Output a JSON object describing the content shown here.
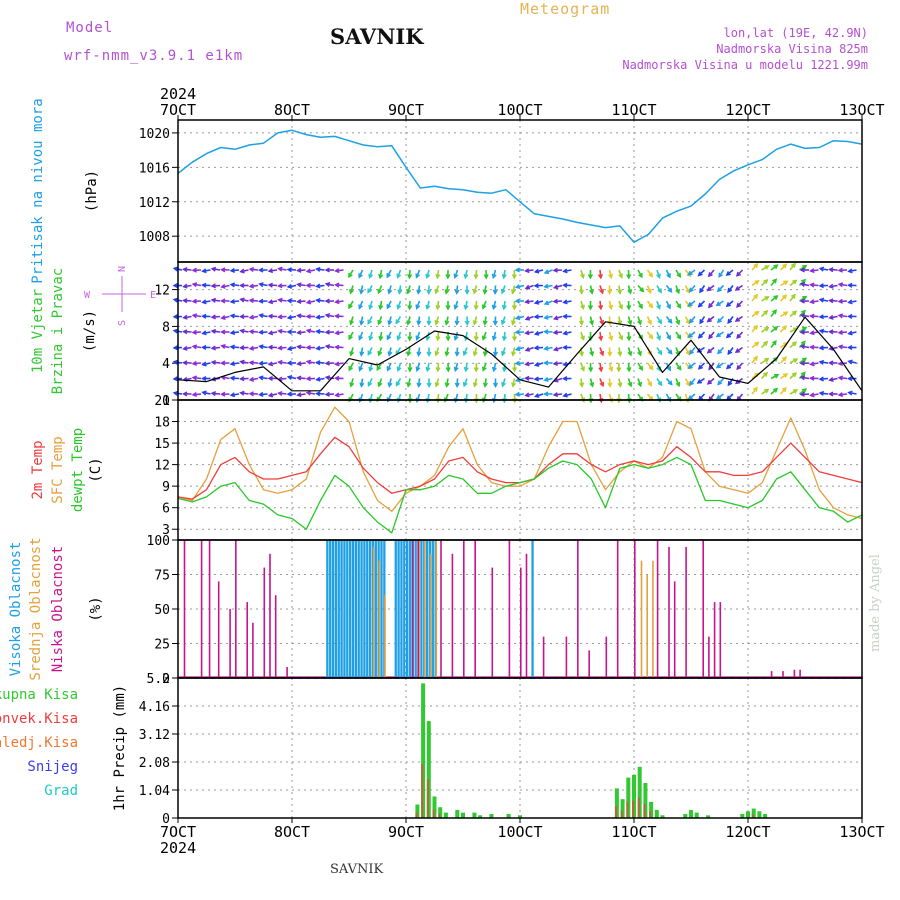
{
  "header": {
    "model_label": "Model",
    "model_name": "wrf-nmm_v3.9.1  e1km",
    "station": "SAVNIK",
    "product": "Meteogram",
    "lonlat": "lon,lat (19E, 42.9N)",
    "elevation": "Nadmorska Visina 825m",
    "model_elevation": "Nadmorska Visina u modelu 1221.99m",
    "credit": "made by Angel",
    "footer_station": "SAVNIK"
  },
  "time_axis": {
    "year": "2024",
    "ticks": [
      "7OCT",
      "8OCT",
      "9OCT",
      "10OCT",
      "11OCT",
      "12OCT",
      "13OCT"
    ]
  },
  "colors": {
    "pressure": "#1e9fe6",
    "temp2m": "#f03c3c",
    "sfc": "#e6a03c",
    "dewpt": "#28c828",
    "high_cloud": "#1e9fe6",
    "mid_cloud": "#e6a03c",
    "low_cloud": "#c8148c",
    "total_precip": "#32c832",
    "convective": "#f03c3c",
    "frozen": "#f07832",
    "snow": "#3c3cf0",
    "graupel": "#1ec8c8",
    "wind_axis": "#c864e6"
  },
  "chart_data": [
    {
      "type": "line",
      "panel": "pressure",
      "ylabel": "Pritisak na nivou mora",
      "unit": "(hPa)",
      "yticks": [
        1008,
        1012,
        1016,
        1020
      ],
      "ylim": [
        1005,
        1021.5
      ],
      "x_days": [
        0,
        0.125,
        0.25,
        0.375,
        0.5,
        0.625,
        0.75,
        0.875,
        1.0,
        1.125,
        1.25,
        1.375,
        1.5,
        1.625,
        1.75,
        1.875,
        2.0,
        2.125,
        2.25,
        2.375,
        2.5,
        2.625,
        2.75,
        2.875,
        3.0,
        3.125,
        3.25,
        3.375,
        3.5,
        3.625,
        3.75,
        3.875,
        4.0,
        4.125,
        4.25,
        4.375,
        4.5,
        4.625,
        4.75,
        4.875,
        5.0,
        5.125,
        5.25,
        5.375,
        5.5,
        5.625,
        5.75,
        5.875,
        6.0
      ],
      "series": [
        {
          "values": [
            1015.3,
            1016.6,
            1017.6,
            1018.3,
            1018.1,
            1018.6,
            1018.8,
            1020.0,
            1020.3,
            1019.8,
            1019.5,
            1019.6,
            1019.1,
            1018.6,
            1018.4,
            1018.5,
            1016.0,
            1013.6,
            1013.8,
            1013.5,
            1013.4,
            1013.1,
            1013.0,
            1013.4,
            1012.0,
            1010.6,
            1010.3,
            1010.0,
            1009.6,
            1009.3,
            1009.0,
            1009.2,
            1007.3,
            1008.2,
            1010.1,
            1010.9,
            1011.5,
            1012.9,
            1014.6,
            1015.6,
            1016.3,
            1016.9,
            1018.1,
            1018.7,
            1018.2,
            1018.3,
            1019.1,
            1019.0,
            1018.7
          ]
        }
      ]
    },
    {
      "type": "line",
      "panel": "wind",
      "ylabel": "10m Vjetar",
      "ylabel2": "Brzina i Pravac",
      "unit": "(m/s)",
      "direction_legend": [
        "N",
        "W",
        "E",
        "S"
      ],
      "yticks": [
        0,
        4,
        8,
        12
      ],
      "ylim": [
        0,
        15
      ],
      "x_days": [
        0,
        0.25,
        0.5,
        0.75,
        1.0,
        1.25,
        1.5,
        1.75,
        2.0,
        2.25,
        2.5,
        2.75,
        3.0,
        3.25,
        3.5,
        3.75,
        4.0,
        4.25,
        4.5,
        4.75,
        5.0,
        5.25,
        5.5,
        5.75,
        6.0
      ],
      "series": [
        {
          "values": [
            2.2,
            2.0,
            3.0,
            3.6,
            1.0,
            1.0,
            4.5,
            3.8,
            5.5,
            7.5,
            7.0,
            5.0,
            2.2,
            1.4,
            5.0,
            8.5,
            8.0,
            3.0,
            6.5,
            2.5,
            1.8,
            4.5,
            9.0,
            5.5,
            1.0
          ]
        }
      ]
    },
    {
      "type": "line",
      "panel": "temperature",
      "ylabel": "2m Temp",
      "ylabel2": "SFC Temp",
      "ylabel3": "dewpt Temp",
      "unit": "(C)",
      "yticks": [
        3,
        6,
        9,
        12,
        15,
        18,
        21
      ],
      "ylim": [
        1.5,
        21
      ],
      "x_days": [
        0,
        0.125,
        0.25,
        0.375,
        0.5,
        0.625,
        0.75,
        0.875,
        1.0,
        1.125,
        1.25,
        1.375,
        1.5,
        1.625,
        1.75,
        1.875,
        2.0,
        2.125,
        2.25,
        2.375,
        2.5,
        2.625,
        2.75,
        2.875,
        3.0,
        3.125,
        3.25,
        3.375,
        3.5,
        3.625,
        3.75,
        3.875,
        4.0,
        4.125,
        4.25,
        4.375,
        4.5,
        4.625,
        4.75,
        4.875,
        5.0,
        5.125,
        5.25,
        5.375,
        5.5,
        5.625,
        5.75,
        5.875,
        6.0
      ],
      "series": [
        {
          "name": "2m Temp",
          "values": [
            7.5,
            7.2,
            8.5,
            12.0,
            13.0,
            11.0,
            10.0,
            10.0,
            10.5,
            11.0,
            13.5,
            15.8,
            14.5,
            11.5,
            9.5,
            8.0,
            8.5,
            9.0,
            10.0,
            12.5,
            13.0,
            11.0,
            10.0,
            9.5,
            9.5,
            10.0,
            12.0,
            13.5,
            13.5,
            12.0,
            11.0,
            12.0,
            12.5,
            12.0,
            12.5,
            14.5,
            13.0,
            11.0,
            11.0,
            10.5,
            10.5,
            11.0,
            13.0,
            15.0,
            13.0,
            11.0,
            10.5,
            10.0,
            9.5
          ]
        },
        {
          "name": "SFC Temp",
          "values": [
            7.5,
            7.0,
            10.0,
            15.5,
            17.0,
            12.0,
            8.5,
            8.0,
            8.5,
            10.0,
            16.5,
            20.0,
            18.0,
            11.0,
            7.0,
            5.5,
            8.0,
            9.0,
            10.5,
            14.5,
            17.0,
            12.0,
            9.5,
            9.0,
            9.0,
            10.0,
            14.5,
            18.0,
            18.0,
            12.0,
            8.5,
            11.0,
            12.5,
            11.5,
            13.0,
            18.0,
            17.0,
            11.0,
            9.0,
            8.5,
            8.0,
            9.5,
            14.0,
            18.5,
            14.0,
            8.5,
            6.0,
            5.0,
            4.5
          ]
        },
        {
          "name": "dewpt Temp",
          "values": [
            7.3,
            6.8,
            7.5,
            9.0,
            9.5,
            7.0,
            6.5,
            5.0,
            4.5,
            3.0,
            7.0,
            10.5,
            9.0,
            6.0,
            4.0,
            2.5,
            8.5,
            8.5,
            9.0,
            10.5,
            10.0,
            8.0,
            8.0,
            9.0,
            9.5,
            10.0,
            11.5,
            12.5,
            12.0,
            10.0,
            6.0,
            11.5,
            12.0,
            11.5,
            12.0,
            13.0,
            12.0,
            7.0,
            7.0,
            6.5,
            6.0,
            7.0,
            10.0,
            11.0,
            8.5,
            6.0,
            5.5,
            4.0,
            5.0
          ]
        }
      ]
    },
    {
      "type": "bar",
      "panel": "cloud",
      "ylabel": "Visoka Oblacnost",
      "ylabel2": "Srednja Oblacnost",
      "ylabel3": "Niska Oblacnost",
      "unit": "(%)",
      "yticks": [
        0,
        25,
        50,
        75,
        100
      ],
      "ylim": [
        0,
        100
      ],
      "series": [
        {
          "name": "Visoka Oblacnost",
          "blocks": [
            [
              1.3,
              1.8,
              100
            ],
            [
              1.9,
              2.25,
              100
            ],
            [
              3.1,
              3.12,
              100
            ]
          ]
        },
        {
          "name": "Srednja Oblacnost",
          "x_days": [
            1.7,
            1.75,
            1.8,
            2.1,
            2.15,
            2.2,
            2.25,
            4.05,
            4.1,
            4.15
          ],
          "values": [
            95,
            85,
            60,
            100,
            100,
            90,
            100,
            85,
            75,
            85
          ]
        },
        {
          "name": "Niska Oblacnost",
          "x_days": [
            0.05,
            0.2,
            0.27,
            0.35,
            0.45,
            0.5,
            0.6,
            0.65,
            0.75,
            0.8,
            0.85,
            0.95,
            2.05,
            2.1,
            2.3,
            2.4,
            2.5,
            2.6,
            2.75,
            2.9,
            3.0,
            3.05,
            3.2,
            3.4,
            3.5,
            3.6,
            3.75,
            3.85,
            4.0,
            4.2,
            4.3,
            4.35,
            4.45,
            4.6,
            4.65,
            4.7,
            4.75,
            5.2,
            5.3,
            5.4,
            5.45
          ],
          "values": [
            100,
            100,
            100,
            70,
            50,
            100,
            55,
            40,
            80,
            90,
            60,
            8,
            100,
            100,
            100,
            90,
            100,
            100,
            80,
            100,
            80,
            90,
            30,
            30,
            100,
            20,
            30,
            100,
            100,
            100,
            95,
            70,
            95,
            100,
            30,
            55,
            55,
            5,
            5,
            6,
            6
          ]
        }
      ]
    },
    {
      "type": "bar",
      "panel": "precip",
      "ylabel": "1hr Precip",
      "unit": "(mm)",
      "legend": [
        "Ukupna Kisa",
        "Konvek.Kisa",
        "Zaledj.Kisa",
        "Snijeg",
        "Grad"
      ],
      "yticks": [
        "0",
        "1.04",
        "2.08",
        "3.12",
        "4.16",
        "5.2"
      ],
      "ylim": [
        0,
        5.2
      ],
      "series": [
        {
          "name": "Ukupna Kisa",
          "x_days": [
            2.1,
            2.15,
            2.2,
            2.25,
            2.3,
            2.35,
            2.45,
            2.5,
            2.6,
            2.65,
            2.75,
            2.9,
            3.0,
            3.85,
            3.9,
            3.95,
            4.0,
            4.05,
            4.1,
            4.15,
            4.2,
            4.25,
            4.45,
            4.5,
            4.55,
            4.65,
            4.95,
            5.0,
            5.05,
            5.1,
            5.15
          ],
          "values": [
            0.5,
            5.0,
            3.6,
            0.8,
            0.4,
            0.2,
            0.3,
            0.2,
            0.2,
            0.1,
            0.15,
            0.15,
            0.1,
            1.1,
            0.7,
            1.5,
            1.6,
            1.9,
            1.3,
            0.6,
            0.3,
            0.1,
            0.15,
            0.3,
            0.2,
            0.1,
            0.15,
            0.25,
            0.35,
            0.25,
            0.15
          ]
        }
      ]
    }
  ]
}
